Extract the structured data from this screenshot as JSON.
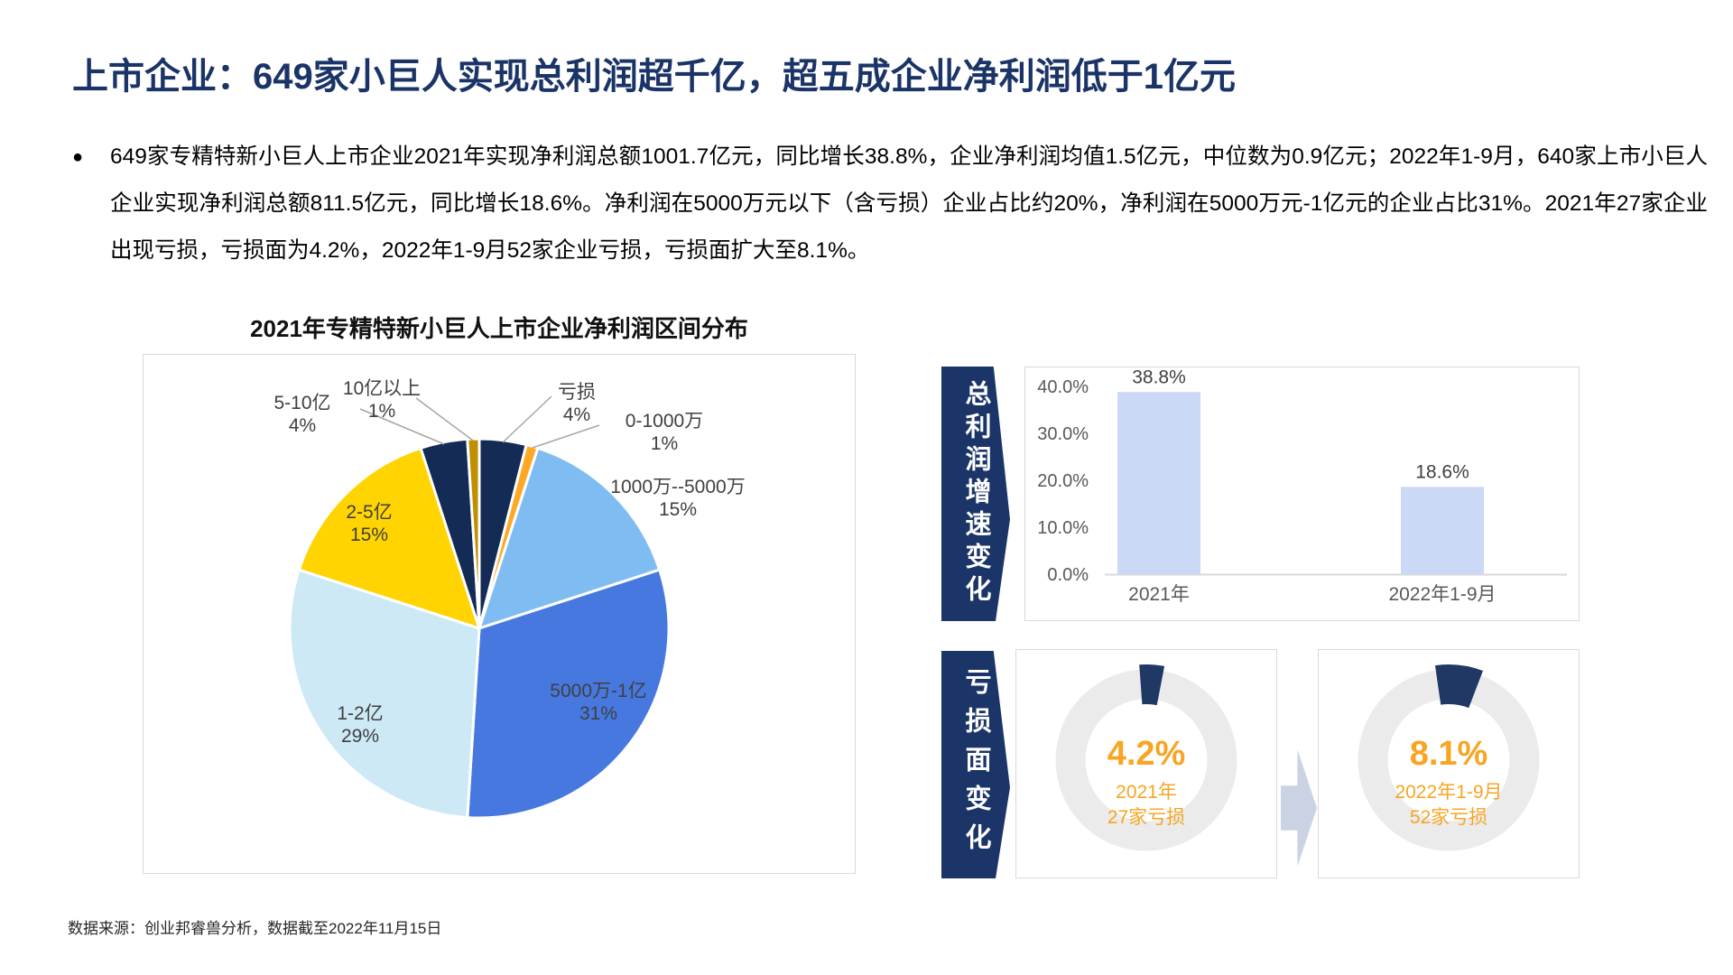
{
  "slide": {
    "title": "上市企业：649家小巨人实现总利润超千亿，超五成企业净利润低于1亿元",
    "bullet_marker": "●",
    "bullet": "649家专精特新小巨人上市企业2021年实现净利润总额1001.7亿元，同比增长38.8%，企业净利润均值1.5亿元，中位数为0.9亿元；2022年1-9月，640家上市小巨人企业实现净利润总额811.5亿元，同比增长18.6%。净利润在5000万元以下（含亏损）企业占比约20%，净利润在5000万元-1亿元的企业占比31%。2021年27家企业出现亏损，亏损面为4.2%，2022年1-9月52家企业亏损，亏损面扩大至8.1%。",
    "source": "数据来源：创业邦睿兽分析，数据截至2022年11月15日"
  },
  "colors": {
    "title_navy": "#1B3467",
    "banner_navy": "#1C3568",
    "pie_navy": "#142B55",
    "donut_navy": "#1F3864",
    "accent_orange": "#F7A523",
    "bar_fill": "#CBD9F6",
    "donut_ring": "#EBEBEB",
    "panel_border": "#D9D9D9",
    "leader_line": "#A6A6A6",
    "label_text": "#404040",
    "axis_text": "#595959",
    "arrow_fill": "#C9D3E3"
  },
  "chart_data": [
    {
      "type": "pie",
      "title": "2021年专精特新小巨人上市企业净利润区间分布",
      "start_angle_deg": 0,
      "direction": "clockwise",
      "slices": [
        {
          "label": "亏损",
          "value": 4,
          "pct_label": "4%",
          "color": "#142B55",
          "label_placement": "outside"
        },
        {
          "label": "0-1000万",
          "value": 1,
          "pct_label": "1%",
          "color": "#FFA826",
          "label_placement": "outside"
        },
        {
          "label": "1000万--5000万",
          "value": 15,
          "pct_label": "15%",
          "color": "#7FBCF2",
          "label_placement": "outside"
        },
        {
          "label": "5000万-1亿",
          "value": 31,
          "pct_label": "31%",
          "color": "#4778E0",
          "label_placement": "inside"
        },
        {
          "label": "1-2亿",
          "value": 29,
          "pct_label": "29%",
          "color": "#CDE9F6",
          "label_placement": "inside"
        },
        {
          "label": "2-5亿",
          "value": 15,
          "pct_label": "15%",
          "color": "#FFD400",
          "label_placement": "inside"
        },
        {
          "label": "5-10亿",
          "value": 4,
          "pct_label": "4%",
          "color": "#142B55",
          "label_placement": "outside"
        },
        {
          "label": "10亿以上",
          "value": 1,
          "pct_label": "1%",
          "color": "#BF8F00",
          "label_placement": "outside"
        }
      ]
    },
    {
      "type": "bar",
      "section_label": "总利润增速变化",
      "categories": [
        "2021年",
        "2022年1-9月"
      ],
      "values": [
        38.8,
        18.6
      ],
      "data_labels": [
        "38.8%",
        "18.6%"
      ],
      "y_ticks": [
        {
          "v": 40,
          "label": "40.0%"
        },
        {
          "v": 30,
          "label": "30.0%"
        },
        {
          "v": 20,
          "label": "20.0%"
        },
        {
          "v": 10,
          "label": "10.0%"
        },
        {
          "v": 0,
          "label": "0.0%"
        }
      ],
      "ylim": [
        0,
        40
      ],
      "grid": false,
      "legend": "none"
    },
    {
      "type": "donut-pair",
      "section_label": "亏损面变化",
      "donuts": [
        {
          "value": 4.2,
          "value_label": "4.2%",
          "caption_line1": "2021年",
          "caption_line2": "27家亏损"
        },
        {
          "value": 8.1,
          "value_label": "8.1%",
          "caption_line1": "2022年1-9月",
          "caption_line2": "52家亏损"
        }
      ]
    }
  ]
}
